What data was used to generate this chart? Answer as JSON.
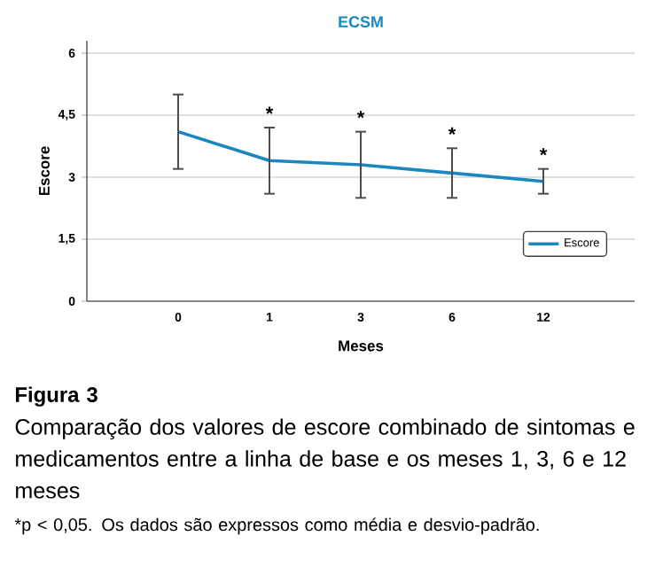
{
  "chart_data": {
    "type": "line",
    "title": "ECSM",
    "xlabel": "Meses",
    "ylabel": "Escore",
    "categories": [
      "0",
      "1",
      "3",
      "6",
      "12"
    ],
    "series": [
      {
        "name": "Escore",
        "color": "#1a87c0",
        "values": [
          4.1,
          3.4,
          3.3,
          3.1,
          2.9
        ],
        "errors": [
          0.9,
          0.8,
          0.8,
          0.6,
          0.3
        ]
      }
    ],
    "ylim": [
      0,
      6.3
    ],
    "yticks": [
      0,
      {
        "value": 1.5,
        "label": "1,5"
      },
      3,
      {
        "value": 4.5,
        "label": "4,5"
      },
      6
    ],
    "grid": "y",
    "legend": "bottom right",
    "marker": "none",
    "line_style": "solid",
    "annotations": [
      {
        "text": "*",
        "x": "1",
        "y": 4.2
      },
      {
        "text": "*",
        "x": "3",
        "y": 4.1
      },
      {
        "text": "*",
        "x": "6",
        "y": 3.7
      },
      {
        "text": "*",
        "x": "12",
        "y": 3.2
      },
      "**Figura 3**",
      "Comparação dos valores de escore combinado de sintomas e medicamentos entre a linha de base e os meses 1, 3,  6 e 12 meses",
      "*p < 0,05. Os dados são expressos como média e desvio-padrão."
    ]
  }
}
